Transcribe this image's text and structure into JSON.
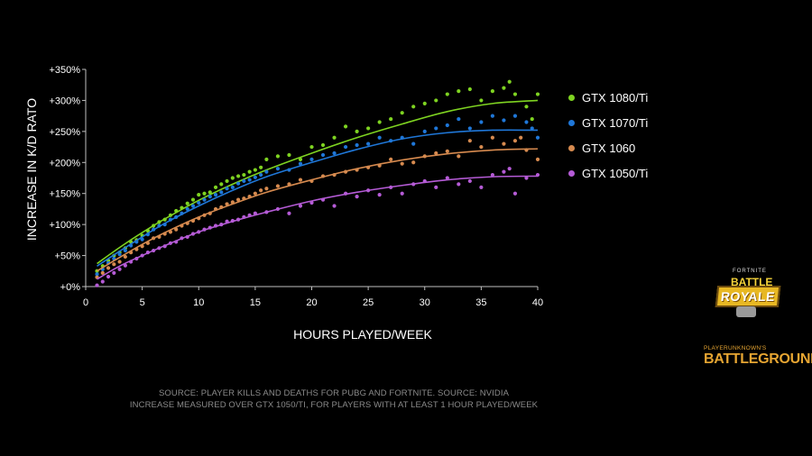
{
  "chart_data": {
    "type": "scatter",
    "xlabel": "HOURS PLAYED/WEEK",
    "ylabel": "INCREASE IN K/D RATO",
    "xlim": [
      0,
      40
    ],
    "ylim": [
      0,
      350
    ],
    "x_ticks": [
      "0",
      "5",
      "10",
      "15",
      "20",
      "25",
      "30",
      "35",
      "40"
    ],
    "y_ticks": [
      "+0%",
      "+50%",
      "+100%",
      "+150%",
      "+200%",
      "+250%",
      "+300%",
      "+350%"
    ],
    "grid": false,
    "legend_position": "right",
    "series": [
      {
        "name": "GTX 1080/Ti",
        "color": "#7ed321",
        "trend": [
          [
            1,
            37
          ],
          [
            3,
            63
          ],
          [
            5,
            87
          ],
          [
            7,
            109
          ],
          [
            10,
            139
          ],
          [
            13,
            165
          ],
          [
            16,
            188
          ],
          [
            20,
            215
          ],
          [
            24,
            240
          ],
          [
            28,
            262
          ],
          [
            32,
            282
          ],
          [
            36,
            295
          ],
          [
            40,
            300
          ]
        ],
        "points": [
          [
            1,
            25
          ],
          [
            1.5,
            33
          ],
          [
            2,
            42
          ],
          [
            2.5,
            50
          ],
          [
            3,
            55
          ],
          [
            3.5,
            62
          ],
          [
            4,
            72
          ],
          [
            4.5,
            75
          ],
          [
            5,
            82
          ],
          [
            5.5,
            90
          ],
          [
            6,
            98
          ],
          [
            6.5,
            104
          ],
          [
            7,
            108
          ],
          [
            7.5,
            115
          ],
          [
            8,
            122
          ],
          [
            8.5,
            127
          ],
          [
            9,
            134
          ],
          [
            9.5,
            140
          ],
          [
            10,
            148
          ],
          [
            10.5,
            150
          ],
          [
            11,
            152
          ],
          [
            11.5,
            160
          ],
          [
            12,
            165
          ],
          [
            12.5,
            170
          ],
          [
            13,
            175
          ],
          [
            13.5,
            178
          ],
          [
            14,
            180
          ],
          [
            14.5,
            185
          ],
          [
            15,
            188
          ],
          [
            15.5,
            192
          ],
          [
            16,
            205
          ],
          [
            17,
            210
          ],
          [
            18,
            212
          ],
          [
            19,
            205
          ],
          [
            20,
            225
          ],
          [
            21,
            228
          ],
          [
            22,
            240
          ],
          [
            23,
            258
          ],
          [
            24,
            250
          ],
          [
            25,
            255
          ],
          [
            26,
            265
          ],
          [
            27,
            270
          ],
          [
            28,
            280
          ],
          [
            29,
            290
          ],
          [
            30,
            295
          ],
          [
            31,
            300
          ],
          [
            32,
            310
          ],
          [
            33,
            315
          ],
          [
            34,
            318
          ],
          [
            35,
            300
          ],
          [
            36,
            315
          ],
          [
            37,
            320
          ],
          [
            37.5,
            330
          ],
          [
            38,
            310
          ],
          [
            39,
            290
          ],
          [
            39.5,
            270
          ],
          [
            40,
            310
          ]
        ]
      },
      {
        "name": "GTX 1070/Ti",
        "color": "#1f77d8",
        "trend": [
          [
            1,
            33
          ],
          [
            3,
            57
          ],
          [
            5,
            80
          ],
          [
            7,
            102
          ],
          [
            10,
            130
          ],
          [
            13,
            155
          ],
          [
            16,
            177
          ],
          [
            20,
            200
          ],
          [
            24,
            221
          ],
          [
            28,
            238
          ],
          [
            32,
            248
          ],
          [
            36,
            252
          ],
          [
            40,
            252
          ]
        ],
        "points": [
          [
            1,
            20
          ],
          [
            1.5,
            28
          ],
          [
            2,
            38
          ],
          [
            2.5,
            45
          ],
          [
            3,
            52
          ],
          [
            3.5,
            58
          ],
          [
            4,
            66
          ],
          [
            4.5,
            72
          ],
          [
            5,
            76
          ],
          [
            5.5,
            84
          ],
          [
            6,
            92
          ],
          [
            6.5,
            98
          ],
          [
            7,
            100
          ],
          [
            7.5,
            108
          ],
          [
            8,
            112
          ],
          [
            8.5,
            118
          ],
          [
            9,
            125
          ],
          [
            9.5,
            130
          ],
          [
            10,
            135
          ],
          [
            10.5,
            140
          ],
          [
            11,
            145
          ],
          [
            11.5,
            148
          ],
          [
            12,
            152
          ],
          [
            12.5,
            158
          ],
          [
            13,
            160
          ],
          [
            13.5,
            166
          ],
          [
            14,
            170
          ],
          [
            14.5,
            172
          ],
          [
            15,
            176
          ],
          [
            15.5,
            180
          ],
          [
            16,
            185
          ],
          [
            17,
            190
          ],
          [
            18,
            188
          ],
          [
            19,
            198
          ],
          [
            20,
            205
          ],
          [
            21,
            212
          ],
          [
            22,
            215
          ],
          [
            23,
            225
          ],
          [
            24,
            228
          ],
          [
            25,
            230
          ],
          [
            26,
            240
          ],
          [
            27,
            235
          ],
          [
            28,
            240
          ],
          [
            29,
            230
          ],
          [
            30,
            250
          ],
          [
            31,
            255
          ],
          [
            32,
            260
          ],
          [
            33,
            270
          ],
          [
            34,
            255
          ],
          [
            35,
            265
          ],
          [
            36,
            275
          ],
          [
            37,
            268
          ],
          [
            38,
            275
          ],
          [
            39,
            265
          ],
          [
            39.5,
            255
          ],
          [
            40,
            240
          ]
        ]
      },
      {
        "name": "GTX 1060",
        "color": "#d68a4f",
        "trend": [
          [
            1,
            25
          ],
          [
            3,
            47
          ],
          [
            5,
            68
          ],
          [
            7,
            87
          ],
          [
            10,
            112
          ],
          [
            13,
            133
          ],
          [
            16,
            152
          ],
          [
            20,
            172
          ],
          [
            24,
            190
          ],
          [
            28,
            204
          ],
          [
            32,
            214
          ],
          [
            36,
            220
          ],
          [
            40,
            222
          ]
        ],
        "points": [
          [
            1,
            15
          ],
          [
            1.5,
            22
          ],
          [
            2,
            30
          ],
          [
            2.5,
            36
          ],
          [
            3,
            40
          ],
          [
            3.5,
            48
          ],
          [
            4,
            55
          ],
          [
            4.5,
            60
          ],
          [
            5,
            65
          ],
          [
            5.5,
            70
          ],
          [
            6,
            78
          ],
          [
            6.5,
            80
          ],
          [
            7,
            85
          ],
          [
            7.5,
            88
          ],
          [
            8,
            92
          ],
          [
            8.5,
            98
          ],
          [
            9,
            102
          ],
          [
            9.5,
            106
          ],
          [
            10,
            110
          ],
          [
            10.5,
            115
          ],
          [
            11,
            118
          ],
          [
            11.5,
            125
          ],
          [
            12,
            128
          ],
          [
            12.5,
            133
          ],
          [
            13,
            136
          ],
          [
            13.5,
            140
          ],
          [
            14,
            142
          ],
          [
            14.5,
            145
          ],
          [
            15,
            150
          ],
          [
            15.5,
            155
          ],
          [
            16,
            158
          ],
          [
            17,
            162
          ],
          [
            18,
            165
          ],
          [
            19,
            172
          ],
          [
            20,
            170
          ],
          [
            21,
            178
          ],
          [
            22,
            180
          ],
          [
            23,
            185
          ],
          [
            24,
            188
          ],
          [
            25,
            192
          ],
          [
            26,
            195
          ],
          [
            27,
            205
          ],
          [
            28,
            198
          ],
          [
            29,
            200
          ],
          [
            30,
            210
          ],
          [
            31,
            215
          ],
          [
            32,
            218
          ],
          [
            33,
            210
          ],
          [
            34,
            235
          ],
          [
            35,
            225
          ],
          [
            36,
            240
          ],
          [
            37,
            230
          ],
          [
            38,
            235
          ],
          [
            38.5,
            240
          ],
          [
            39,
            220
          ],
          [
            40,
            205
          ]
        ]
      },
      {
        "name": "GTX 1050/Ti",
        "color": "#b55bd6",
        "trend": [
          [
            1,
            12
          ],
          [
            3,
            33
          ],
          [
            5,
            50
          ],
          [
            7,
            66
          ],
          [
            10,
            88
          ],
          [
            13,
            105
          ],
          [
            16,
            120
          ],
          [
            20,
            138
          ],
          [
            24,
            152
          ],
          [
            28,
            163
          ],
          [
            32,
            172
          ],
          [
            36,
            177
          ],
          [
            40,
            178
          ]
        ],
        "points": [
          [
            1,
            2
          ],
          [
            1.5,
            8
          ],
          [
            2,
            16
          ],
          [
            2.5,
            22
          ],
          [
            3,
            28
          ],
          [
            3.5,
            34
          ],
          [
            4,
            40
          ],
          [
            4.5,
            45
          ],
          [
            5,
            50
          ],
          [
            5.5,
            55
          ],
          [
            6,
            58
          ],
          [
            6.5,
            62
          ],
          [
            7,
            65
          ],
          [
            7.5,
            70
          ],
          [
            8,
            72
          ],
          [
            8.5,
            78
          ],
          [
            9,
            80
          ],
          [
            9.5,
            85
          ],
          [
            10,
            88
          ],
          [
            10.5,
            92
          ],
          [
            11,
            95
          ],
          [
            11.5,
            98
          ],
          [
            12,
            100
          ],
          [
            12.5,
            105
          ],
          [
            13,
            106
          ],
          [
            13.5,
            108
          ],
          [
            14,
            112
          ],
          [
            14.5,
            115
          ],
          [
            15,
            118
          ],
          [
            16,
            120
          ],
          [
            17,
            125
          ],
          [
            18,
            118
          ],
          [
            19,
            130
          ],
          [
            20,
            135
          ],
          [
            21,
            140
          ],
          [
            22,
            130
          ],
          [
            23,
            150
          ],
          [
            24,
            145
          ],
          [
            25,
            155
          ],
          [
            26,
            148
          ],
          [
            27,
            160
          ],
          [
            28,
            150
          ],
          [
            29,
            165
          ],
          [
            30,
            170
          ],
          [
            31,
            160
          ],
          [
            32,
            175
          ],
          [
            33,
            165
          ],
          [
            34,
            170
          ],
          [
            35,
            160
          ],
          [
            36,
            180
          ],
          [
            37,
            185
          ],
          [
            37.5,
            190
          ],
          [
            38,
            150
          ],
          [
            39,
            175
          ],
          [
            40,
            180
          ]
        ]
      }
    ]
  },
  "source_lines": [
    "SOURCE: PLAYER KILLS AND DEATHS FOR PUBG AND FORTNITE. SOURCE: NVIDIA",
    "INCREASE MEASURED OVER GTX 1050/TI, FOR PLAYERS WITH AT LEAST 1 HOUR PLAYED/WEEK"
  ],
  "logos": {
    "fortnite_small": "FORTNITE",
    "fortnite_battle": "BATTLE",
    "fortnite_royale": "ROYALE",
    "pubg_small": "PLAYERUNKNOWN'S",
    "pubg_big": "BATTLEGROUNDS"
  }
}
